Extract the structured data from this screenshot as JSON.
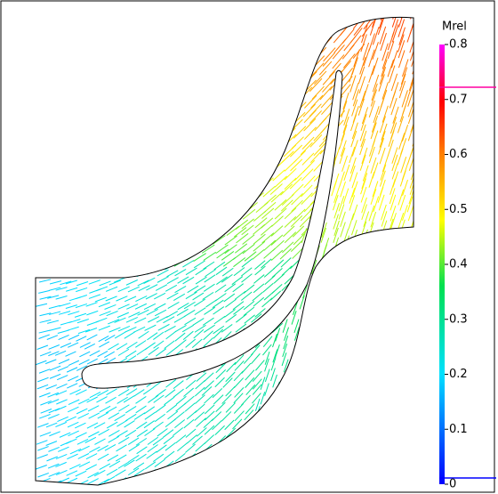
{
  "colorbar": {
    "label": "Mrel",
    "range": [
      0,
      0.8
    ],
    "ticks": [
      0,
      0.1,
      0.2,
      0.3,
      0.4,
      0.5,
      0.6,
      0.7,
      0.8
    ]
  }
}
